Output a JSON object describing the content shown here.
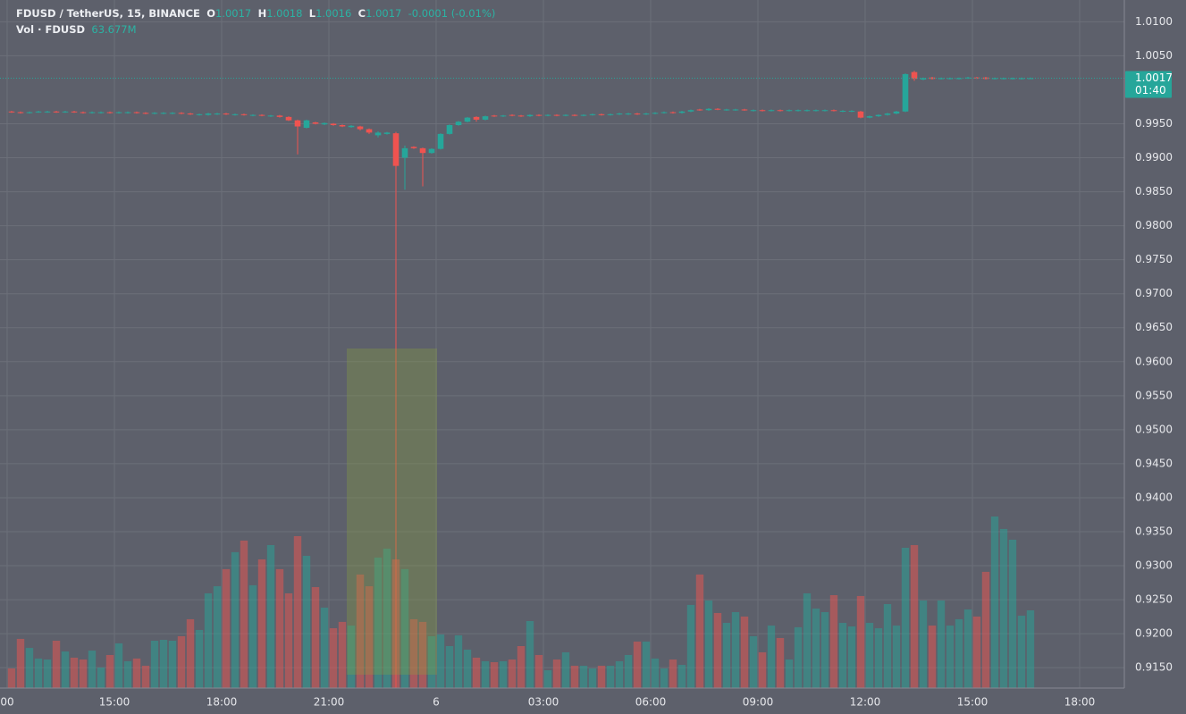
{
  "header": {
    "symbol": "FDUSD / TetherUS, 15, BINANCE",
    "open_label": "O",
    "open": "1.0017",
    "high_label": "H",
    "high": "1.0018",
    "low_label": "L",
    "low": "1.0016",
    "close_label": "C",
    "close": "1.0017",
    "change": "-0.0001 (-0.01%)",
    "volume_name": "Vol · FDUSD",
    "volume": "63.677M",
    "last_price": "1.0017",
    "countdown": "01:40"
  },
  "chart_data": {
    "type": "candlestick",
    "up_color": "#26a69a",
    "down_color": "#ef5350",
    "grid": true,
    "x": [
      12,
      12.25,
      12.5,
      12.75,
      13,
      13.25,
      13.5,
      13.75,
      14,
      14.25,
      14.5,
      14.75,
      15,
      15.25,
      15.5,
      15.75,
      16,
      16.25,
      16.5,
      16.75,
      17,
      17.25,
      17.5,
      17.75,
      18,
      18.25,
      18.5,
      18.75,
      19,
      19.25,
      19.5,
      19.75,
      20,
      20.25,
      20.5,
      20.75,
      21,
      21.25,
      21.5,
      21.75,
      22,
      22.25,
      22.5,
      22.75,
      23,
      23.25,
      23.5,
      23.75,
      24,
      24.25,
      24.5,
      24.75,
      25,
      25.25,
      25.5,
      25.75,
      26,
      26.25,
      26.5,
      26.75,
      27,
      27.25,
      27.5,
      27.75,
      28,
      28.25,
      28.5,
      28.75,
      29,
      29.25,
      29.5,
      29.75,
      30,
      30.25,
      30.5,
      30.75,
      31,
      31.25,
      31.5,
      31.75,
      32,
      32.25,
      32.5,
      32.75,
      33,
      33.25,
      33.5,
      33.75,
      34,
      34.25,
      34.5,
      34.75,
      35,
      35.25,
      35.5,
      35.75,
      36,
      36.25,
      36.5,
      36.75,
      37,
      37.25,
      37.5,
      37.75,
      38,
      38.25,
      38.5,
      38.75,
      39,
      39.25,
      39.5,
      39.75,
      40,
      40.25,
      40.5
    ],
    "open": [
      0.9968,
      0.9967,
      0.9966,
      0.9967,
      0.9967,
      0.9968,
      0.9967,
      0.9968,
      0.9967,
      0.9966,
      0.9966,
      0.9967,
      0.9966,
      0.9966,
      0.9967,
      0.9966,
      0.9965,
      0.9965,
      0.9965,
      0.9966,
      0.9965,
      0.9963,
      0.9963,
      0.9964,
      0.9965,
      0.9963,
      0.9964,
      0.9962,
      0.9963,
      0.9961,
      0.9962,
      0.996,
      0.9955,
      0.9944,
      0.9952,
      0.9949,
      0.995,
      0.9948,
      0.9945,
      0.9946,
      0.9942,
      0.9933,
      0.9935,
      0.9936,
      0.99,
      0.9916,
      0.9914,
      0.9907,
      0.9913,
      0.9935,
      0.9948,
      0.9953,
      0.996,
      0.9956,
      0.9962,
      0.9961,
      0.9963,
      0.9962,
      0.9961,
      0.9963,
      0.9962,
      0.9963,
      0.9962,
      0.9963,
      0.9962,
      0.9963,
      0.9964,
      0.9963,
      0.9964,
      0.9964,
      0.9965,
      0.9964,
      0.9965,
      0.9966,
      0.9967,
      0.9966,
      0.9968,
      0.9971,
      0.997,
      0.9972,
      0.997,
      0.997,
      0.9971,
      0.9969,
      0.997,
      0.9969,
      0.997,
      0.9969,
      0.9969,
      0.9969,
      0.9969,
      0.9969,
      0.997,
      0.9968,
      0.9968,
      0.9968,
      0.9959,
      0.9961,
      0.9963,
      0.9965,
      0.9968,
      1.0026,
      1.0015,
      1.0018,
      1.0016,
      1.0016,
      1.0016,
      1.0017,
      1.0018,
      1.0018,
      1.0016,
      1.0016,
      1.0016,
      1.0016,
      1.0017
    ],
    "high": [
      0.9969,
      0.9968,
      0.9968,
      0.9969,
      0.9969,
      0.9969,
      0.9969,
      0.9969,
      0.9968,
      0.9968,
      0.9968,
      0.9968,
      0.9968,
      0.9968,
      0.9968,
      0.9967,
      0.9967,
      0.9967,
      0.9967,
      0.9967,
      0.9966,
      0.9965,
      0.9966,
      0.9966,
      0.9966,
      0.9965,
      0.9965,
      0.9964,
      0.9964,
      0.9963,
      0.9963,
      0.9961,
      0.9956,
      0.9956,
      0.9953,
      0.9952,
      0.9951,
      0.9949,
      0.9948,
      0.9947,
      0.9943,
      0.9939,
      0.9938,
      0.9938,
      0.9918,
      0.9917,
      0.9915,
      0.9914,
      0.9936,
      0.9949,
      0.9954,
      0.996,
      0.9961,
      0.9962,
      0.9963,
      0.9963,
      0.9964,
      0.9963,
      0.9964,
      0.9964,
      0.9964,
      0.9964,
      0.9964,
      0.9964,
      0.9964,
      0.9965,
      0.9965,
      0.9965,
      0.9966,
      0.9966,
      0.9966,
      0.9966,
      0.9967,
      0.9968,
      0.9968,
      0.9969,
      0.9971,
      0.9972,
      0.9973,
      0.9973,
      0.9972,
      0.9972,
      0.9972,
      0.9971,
      0.9971,
      0.9971,
      0.9971,
      0.9971,
      0.9971,
      0.9971,
      0.9971,
      0.9971,
      0.9971,
      0.997,
      0.997,
      0.9969,
      0.9962,
      0.9964,
      0.9966,
      0.9969,
      1.0024,
      1.0028,
      1.0018,
      1.0019,
      1.0018,
      1.0018,
      1.0018,
      1.0019,
      1.0019,
      1.0019,
      1.0018,
      1.0018,
      1.0018,
      1.0018,
      1.0018
    ],
    "low": [
      0.9966,
      0.9965,
      0.9965,
      0.9966,
      0.9966,
      0.9966,
      0.9966,
      0.9966,
      0.9965,
      0.9965,
      0.9965,
      0.9965,
      0.9965,
      0.9965,
      0.9965,
      0.9964,
      0.9964,
      0.9964,
      0.9964,
      0.9964,
      0.9963,
      0.9962,
      0.9962,
      0.9963,
      0.9963,
      0.9962,
      0.9962,
      0.9961,
      0.9961,
      0.996,
      0.9959,
      0.9954,
      0.9905,
      0.9943,
      0.9949,
      0.9948,
      0.9947,
      0.9945,
      0.9944,
      0.994,
      0.9935,
      0.993,
      0.9934,
      0.912,
      0.9853,
      0.9913,
      0.9858,
      0.9906,
      0.9912,
      0.9934,
      0.9947,
      0.9952,
      0.9953,
      0.9955,
      0.996,
      0.996,
      0.9961,
      0.996,
      0.996,
      0.9961,
      0.9961,
      0.9961,
      0.9961,
      0.9961,
      0.9961,
      0.9962,
      0.9962,
      0.9962,
      0.9963,
      0.9963,
      0.9963,
      0.9963,
      0.9964,
      0.9965,
      0.9965,
      0.9965,
      0.9967,
      0.9969,
      0.9969,
      0.997,
      0.9969,
      0.9969,
      0.9969,
      0.9968,
      0.9968,
      0.9968,
      0.9968,
      0.9968,
      0.9968,
      0.9968,
      0.9968,
      0.9968,
      0.9968,
      0.9967,
      0.9967,
      0.9958,
      0.9958,
      0.996,
      0.9962,
      0.9964,
      0.9967,
      1.0013,
      1.0014,
      1.0015,
      1.0015,
      1.0015,
      1.0015,
      1.0016,
      1.0016,
      1.0015,
      1.0015,
      1.0015,
      1.0015,
      1.0015,
      1.0016
    ],
    "close": [
      0.9967,
      0.9966,
      0.9967,
      0.9968,
      0.9968,
      0.9967,
      0.9968,
      0.9967,
      0.9966,
      0.9967,
      0.9967,
      0.9966,
      0.9967,
      0.9967,
      0.9966,
      0.9965,
      0.9966,
      0.9966,
      0.9966,
      0.9965,
      0.9964,
      0.9964,
      0.9965,
      0.9965,
      0.9964,
      0.9964,
      0.9963,
      0.9963,
      0.9962,
      0.9962,
      0.996,
      0.9955,
      0.9946,
      0.9955,
      0.995,
      0.9951,
      0.9948,
      0.9946,
      0.9947,
      0.9942,
      0.9937,
      0.9937,
      0.9937,
      0.9888,
      0.9914,
      0.9914,
      0.9907,
      0.9913,
      0.9935,
      0.9948,
      0.9953,
      0.9959,
      0.9956,
      0.9961,
      0.9961,
      0.9962,
      0.9962,
      0.9961,
      0.9963,
      0.9962,
      0.9963,
      0.9962,
      0.9963,
      0.9962,
      0.9963,
      0.9964,
      0.9963,
      0.9964,
      0.9965,
      0.9965,
      0.9964,
      0.9965,
      0.9966,
      0.9967,
      0.9966,
      0.9968,
      0.997,
      0.997,
      0.9972,
      0.9971,
      0.9971,
      0.9971,
      0.997,
      0.997,
      0.9969,
      0.997,
      0.9969,
      0.997,
      0.997,
      0.997,
      0.997,
      0.997,
      0.9969,
      0.9969,
      0.9969,
      0.9959,
      0.9961,
      0.9963,
      0.9965,
      0.9968,
      1.0023,
      1.0016,
      1.0017,
      1.0016,
      1.0017,
      1.0017,
      1.0017,
      1.0018,
      1.0017,
      1.0016,
      1.0017,
      1.0017,
      1.0017,
      1.0017,
      1.0017
    ],
    "volume": [
      16.1,
      40.3,
      32.9,
      24.2,
      23.4,
      38.8,
      30.0,
      24.9,
      23.4,
      30.7,
      16.8,
      27.1,
      36.6,
      22.0,
      24.2,
      18.3,
      38.8,
      39.5,
      38.8,
      42.5,
      56.4,
      47.6,
      77.6,
      83.4,
      97.4,
      111.3,
      120.8,
      84.2,
      105.4,
      117.1,
      97.4,
      77.6,
      124.4,
      108.3,
      82.7,
      65.9,
      49.0,
      54.2,
      51.2,
      93.0,
      83.4,
      106.9,
      114.2,
      105.4,
      97.4,
      56.4,
      54.2,
      42.5,
      43.9,
      34.4,
      43.2,
      31.5,
      24.9,
      22.0,
      21.2,
      22.0,
      23.4,
      34.4,
      54.9,
      27.1,
      14.6,
      23.4,
      29.3,
      18.3,
      18.3,
      16.1,
      18.3,
      18.3,
      22.0,
      27.1,
      38.1,
      38.1,
      24.2,
      16.1,
      23.4,
      19.0,
      68.1,
      93.0,
      71.7,
      61.5,
      53.4,
      62.2,
      58.6,
      42.5,
      29.3,
      51.2,
      41.0,
      23.4,
      49.8,
      77.6,
      65.1,
      62.2,
      76.1,
      53.4,
      50.5,
      75.4,
      53.4,
      49.0,
      68.8,
      51.2,
      114.9,
      117.1,
      71.7,
      51.2,
      71.7,
      51.2,
      56.4,
      64.4,
      58.6,
      95.2,
      140.5,
      130.3,
      121.5,
      59.3,
      63.677
    ],
    "xlim": [
      11.8,
      43.25
    ],
    "xticks": [
      {
        "value": 12,
        "label": "00"
      },
      {
        "value": 15,
        "label": "15:00"
      },
      {
        "value": 18,
        "label": "18:00"
      },
      {
        "value": 21,
        "label": "21:00"
      },
      {
        "value": 24,
        "label": "6"
      },
      {
        "value": 27,
        "label": "03:00"
      },
      {
        "value": 30,
        "label": "06:00"
      },
      {
        "value": 33,
        "label": "09:00"
      },
      {
        "value": 36,
        "label": "12:00"
      },
      {
        "value": 39,
        "label": "15:00"
      },
      {
        "value": 42,
        "label": "18:00"
      }
    ],
    "ylim": [
      0.912,
      1.0132
    ],
    "yticks": [
      {
        "value": 1.01,
        "label": "1.0100"
      },
      {
        "value": 1.005,
        "label": "1.0050"
      },
      {
        "value": 0.995,
        "label": "0.9950"
      },
      {
        "value": 0.99,
        "label": "0.9900"
      },
      {
        "value": 0.985,
        "label": "0.9850"
      },
      {
        "value": 0.98,
        "label": "0.9800"
      },
      {
        "value": 0.975,
        "label": "0.9750"
      },
      {
        "value": 0.97,
        "label": "0.9700"
      },
      {
        "value": 0.965,
        "label": "0.9650"
      },
      {
        "value": 0.96,
        "label": "0.9600"
      },
      {
        "value": 0.955,
        "label": "0.9550"
      },
      {
        "value": 0.95,
        "label": "0.9500"
      },
      {
        "value": 0.945,
        "label": "0.9450"
      },
      {
        "value": 0.94,
        "label": "0.9400"
      },
      {
        "value": 0.935,
        "label": "0.9350"
      },
      {
        "value": 0.93,
        "label": "0.9300"
      },
      {
        "value": 0.925,
        "label": "0.9250"
      },
      {
        "value": 0.92,
        "label": "0.9200"
      },
      {
        "value": 0.915,
        "label": "0.9150"
      }
    ]
  }
}
